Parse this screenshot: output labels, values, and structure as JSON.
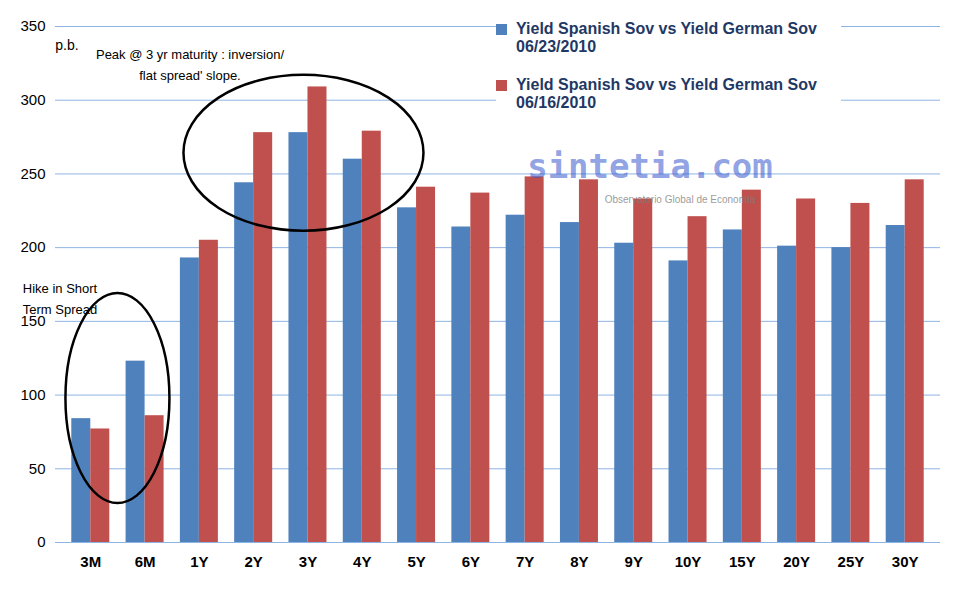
{
  "chart_data": {
    "type": "bar",
    "y_label": "p.b.",
    "categories": [
      "3M",
      "6M",
      "1Y",
      "2Y",
      "3Y",
      "4Y",
      "5Y",
      "6Y",
      "7Y",
      "8Y",
      "9Y",
      "10Y",
      "15Y",
      "20Y",
      "25Y",
      "30Y"
    ],
    "series": [
      {
        "name": "Yield Spanish Sov vs Yield German Sov 06/23/2010",
        "color": "#4f81bd",
        "values": [
          84,
          123,
          193,
          244,
          278,
          260,
          227,
          214,
          222,
          217,
          203,
          191,
          212,
          201,
          200,
          215
        ]
      },
      {
        "name": "Yield Spanish Sov vs Yield German Sov 06/16/2010",
        "color": "#c0504d",
        "values": [
          77,
          86,
          205,
          278,
          309,
          279,
          241,
          237,
          248,
          246,
          233,
          221,
          239,
          233,
          230,
          246
        ]
      }
    ],
    "ylim": [
      0,
      350
    ],
    "yticks": [
      0,
      50,
      100,
      150,
      200,
      250,
      300,
      350
    ],
    "grid": true,
    "legend": "top-right",
    "annotations": [
      {
        "text": "Peak @ 3 yr maturity : inversion/\nflat spread' slope."
      },
      {
        "text": "Hike in Short\nTerm Spread"
      }
    ],
    "watermark": [
      "sintetia.com",
      "Observatorio Global de Economía"
    ]
  }
}
